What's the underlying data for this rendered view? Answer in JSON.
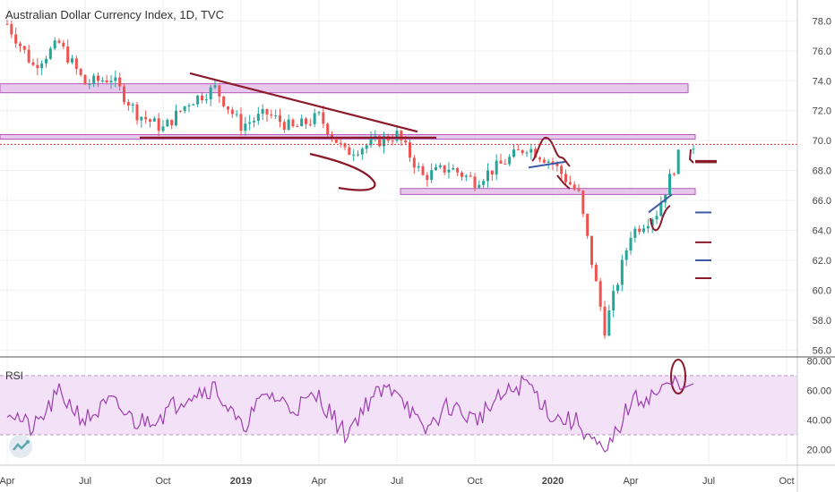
{
  "header": {
    "title": "Australian Dollar Currency Index, 1D, TVC"
  },
  "rsi_panel": {
    "label": "RSI"
  },
  "colors": {
    "up": "#26a69a",
    "down": "#ef5350",
    "zone_fill": "#e8c8ec",
    "zone_stroke": "#b25bb8",
    "trendline": "#8b1a2b",
    "blue_line": "#3b5ba7",
    "rsi_line": "#9c3fae",
    "rsi_band": "#f3e2f7",
    "price_tag": "#e2363c"
  },
  "chart_data": [
    {
      "type": "candlestick",
      "title": "Australian Dollar Currency Index, 1D, TVC",
      "x_ticks": [
        "Apr",
        "Jul",
        "Oct",
        "2019",
        "Apr",
        "Jul",
        "Oct",
        "2020",
        "Apr",
        "Jul",
        "Oct"
      ],
      "y_ticks": [
        56.0,
        58.0,
        60.0,
        62.0,
        64.0,
        66.0,
        68.0,
        70.0,
        72.0,
        74.0,
        76.0,
        78.0
      ],
      "ylim": [
        55.6,
        79.4
      ],
      "last_price": 69.75,
      "series": [
        {
          "date": "2018-04",
          "value": 77.8
        },
        {
          "date": "2018-05",
          "value": 75.0
        },
        {
          "date": "2018-06",
          "value": 76.5
        },
        {
          "date": "2018-07",
          "value": 73.8
        },
        {
          "date": "2018-08",
          "value": 74.2
        },
        {
          "date": "2018-09",
          "value": 71.8
        },
        {
          "date": "2018-10",
          "value": 70.8
        },
        {
          "date": "2018-11",
          "value": 72.6
        },
        {
          "date": "2018-12",
          "value": 73.5
        },
        {
          "date": "2019-01",
          "value": 71.0
        },
        {
          "date": "2019-02",
          "value": 71.8
        },
        {
          "date": "2019-03",
          "value": 70.8
        },
        {
          "date": "2019-04",
          "value": 71.6
        },
        {
          "date": "2019-05",
          "value": 69.2
        },
        {
          "date": "2019-06",
          "value": 69.8
        },
        {
          "date": "2019-07",
          "value": 70.4
        },
        {
          "date": "2019-08",
          "value": 67.6
        },
        {
          "date": "2019-09",
          "value": 68.2
        },
        {
          "date": "2019-10",
          "value": 67.3
        },
        {
          "date": "2019-11",
          "value": 68.4
        },
        {
          "date": "2019-12",
          "value": 69.6
        },
        {
          "date": "2020-01",
          "value": 68.5
        },
        {
          "date": "2020-02",
          "value": 66.4
        },
        {
          "date": "2020-03",
          "value": 57.4
        },
        {
          "date": "2020-04",
          "value": 63.8
        },
        {
          "date": "2020-05",
          "value": 65.2
        },
        {
          "date": "2020-06",
          "value": 69.7
        }
      ]
    },
    {
      "type": "line",
      "title": "RSI",
      "y_ticks": [
        20.0,
        40.0,
        60.0,
        80.0
      ],
      "ylim": [
        10,
        82
      ],
      "band": [
        30,
        70
      ],
      "series": [
        {
          "date": "2018-04",
          "value": 48
        },
        {
          "date": "2018-05",
          "value": 33
        },
        {
          "date": "2018-06",
          "value": 58
        },
        {
          "date": "2018-07",
          "value": 40
        },
        {
          "date": "2018-08",
          "value": 52
        },
        {
          "date": "2018-09",
          "value": 38
        },
        {
          "date": "2018-10",
          "value": 44
        },
        {
          "date": "2018-11",
          "value": 58
        },
        {
          "date": "2018-12",
          "value": 62
        },
        {
          "date": "2019-01",
          "value": 34
        },
        {
          "date": "2019-02",
          "value": 58
        },
        {
          "date": "2019-03",
          "value": 48
        },
        {
          "date": "2019-04",
          "value": 56
        },
        {
          "date": "2019-05",
          "value": 30
        },
        {
          "date": "2019-06",
          "value": 55
        },
        {
          "date": "2019-07",
          "value": 63
        },
        {
          "date": "2019-08",
          "value": 31
        },
        {
          "date": "2019-09",
          "value": 50
        },
        {
          "date": "2019-10",
          "value": 40
        },
        {
          "date": "2019-11",
          "value": 55
        },
        {
          "date": "2019-12",
          "value": 66
        },
        {
          "date": "2020-01",
          "value": 42
        },
        {
          "date": "2020-02",
          "value": 38
        },
        {
          "date": "2020-03",
          "value": 15
        },
        {
          "date": "2020-04",
          "value": 52
        },
        {
          "date": "2020-05",
          "value": 58
        },
        {
          "date": "2020-06",
          "value": 68
        }
      ]
    }
  ],
  "annotations": {
    "zones": [
      {
        "name": "resistance-zone-74",
        "start": "2018-04",
        "end": "2020-06",
        "low": 73.2,
        "high": 73.8
      },
      {
        "name": "resistance-zone-70",
        "start": "2018-04",
        "end": "2020-06",
        "low": 70.1,
        "high": 70.4
      },
      {
        "name": "support-zone-66-7",
        "start": "2019-07",
        "end": "2020-06",
        "low": 66.4,
        "high": 66.8
      }
    ],
    "trendlines": [
      {
        "name": "descending-trendline",
        "from": [
          "2018-11",
          74.5
        ],
        "to": [
          "2019-07",
          70.6
        ]
      },
      {
        "name": "horizontal-trendline",
        "from": [
          "2018-10",
          70.2
        ],
        "to": [
          "2019-09",
          70.2
        ]
      }
    ],
    "blue_lines": [
      {
        "name": "neckline-blue",
        "from": [
          "2019-12",
          68.2
        ],
        "to": [
          "2020-01",
          68.6
        ]
      },
      {
        "name": "rising-blue-line",
        "from": [
          "2020-05",
          65.2
        ],
        "to": [
          "2020-06",
          66.4
        ]
      }
    ],
    "targets": [
      {
        "name": "target-68-6",
        "value": 68.6,
        "color": "#8b1a2b"
      },
      {
        "name": "target-65-2",
        "value": 65.2,
        "color": "#3b5ba7"
      },
      {
        "name": "target-63-2",
        "value": 63.2,
        "color": "#8b1a2b"
      },
      {
        "name": "target-62-0",
        "value": 62.0,
        "color": "#3b5ba7"
      },
      {
        "name": "target-60-8",
        "value": 60.8,
        "color": "#8b1a2b"
      }
    ]
  }
}
